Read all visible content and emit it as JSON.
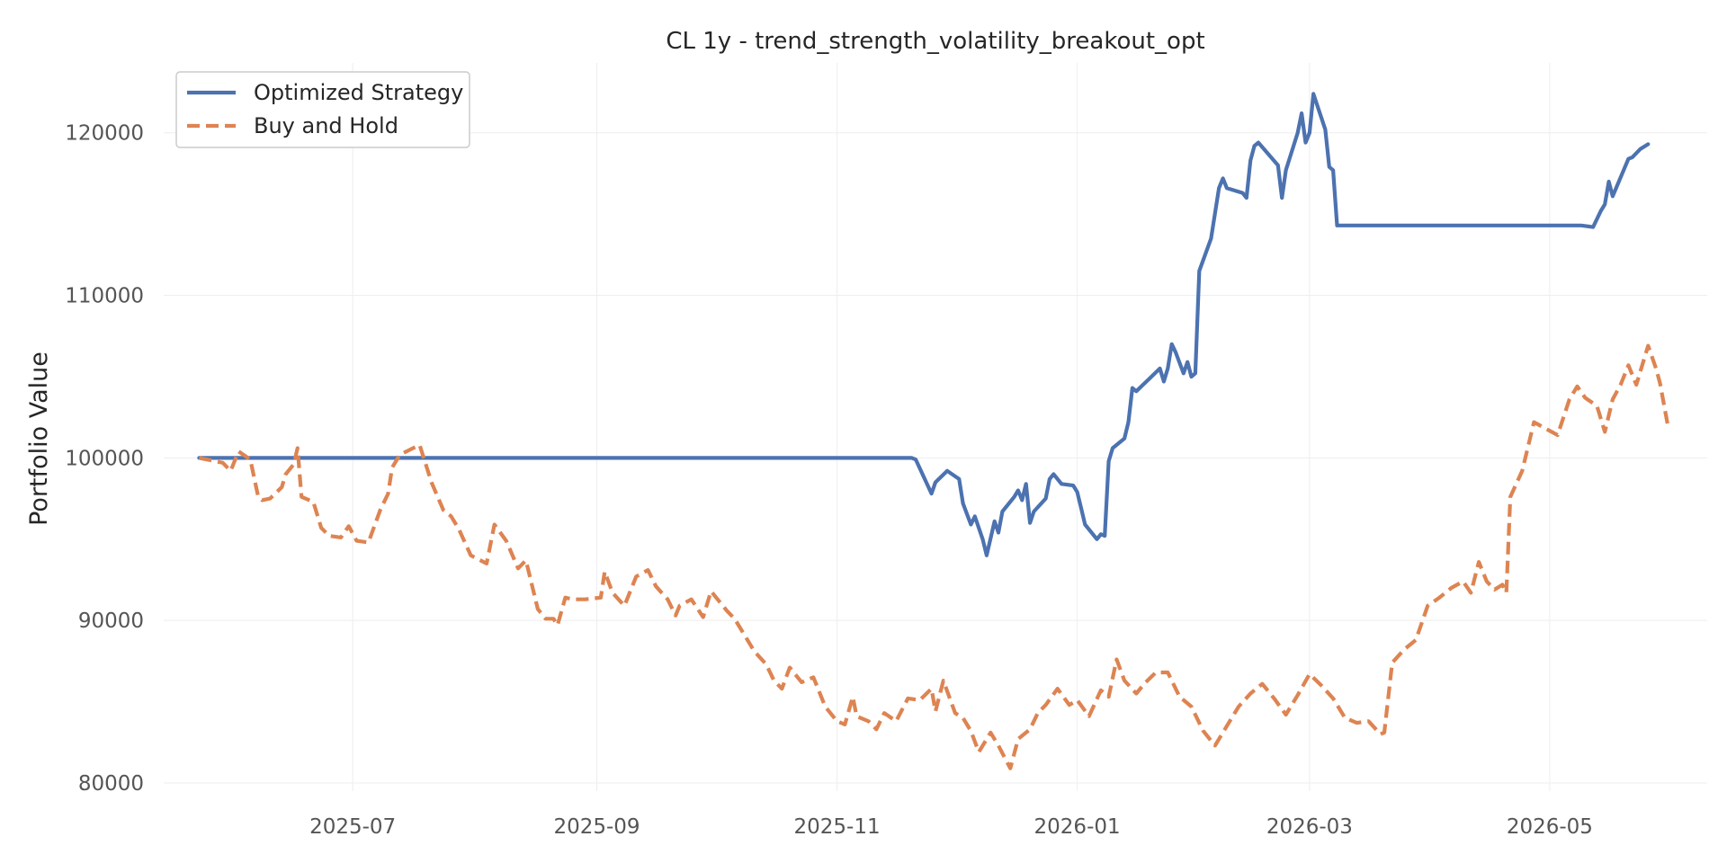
{
  "chart_data": {
    "type": "line",
    "title": "CL 1y - trend_strength_volatility_breakout_opt",
    "xlabel": "",
    "ylabel": "Portfolio Value",
    "grid": true,
    "legend_position": "top-left",
    "xlim": [
      "2025-05-14",
      "2026-06-10"
    ],
    "ylim": [
      79500,
      124300
    ],
    "x_ticks": [
      "2025-07-01",
      "2025-09-01",
      "2025-11-01",
      "2026-01-01",
      "2026-03-01",
      "2026-05-01"
    ],
    "x_tick_labels": [
      "2025-07",
      "2025-09",
      "2025-11",
      "2026-01",
      "2026-03",
      "2026-05"
    ],
    "y_ticks": [
      80000,
      90000,
      100000,
      110000,
      120000
    ],
    "y_tick_labels": [
      "80000",
      "90000",
      "100000",
      "110000",
      "120000"
    ],
    "series": [
      {
        "name": "Optimized Strategy",
        "color": "#4c72b0",
        "style": "solid",
        "points": [
          [
            "2025-05-23",
            100000
          ],
          [
            "2025-11-20",
            100000
          ],
          [
            "2025-11-21",
            99900
          ],
          [
            "2025-11-25",
            97800
          ],
          [
            "2025-11-26",
            98500
          ],
          [
            "2025-11-29",
            99200
          ],
          [
            "2025-12-02",
            98700
          ],
          [
            "2025-12-03",
            97200
          ],
          [
            "2025-12-05",
            95900
          ],
          [
            "2025-12-06",
            96400
          ],
          [
            "2025-12-08",
            95000
          ],
          [
            "2025-12-09",
            94000
          ],
          [
            "2025-12-11",
            96100
          ],
          [
            "2025-12-12",
            95400
          ],
          [
            "2025-12-13",
            96700
          ],
          [
            "2025-12-16",
            97600
          ],
          [
            "2025-12-17",
            98000
          ],
          [
            "2025-12-18",
            97400
          ],
          [
            "2025-12-19",
            98400
          ],
          [
            "2025-12-20",
            96000
          ],
          [
            "2025-12-21",
            96700
          ],
          [
            "2025-12-24",
            97500
          ],
          [
            "2025-12-25",
            98700
          ],
          [
            "2025-12-26",
            99000
          ],
          [
            "2025-12-28",
            98400
          ],
          [
            "2025-12-31",
            98300
          ],
          [
            "2026-01-01",
            97900
          ],
          [
            "2026-01-02",
            96900
          ],
          [
            "2026-01-03",
            95900
          ],
          [
            "2026-01-06",
            95000
          ],
          [
            "2026-01-07",
            95300
          ],
          [
            "2026-01-08",
            95200
          ],
          [
            "2026-01-09",
            99800
          ],
          [
            "2026-01-10",
            100600
          ],
          [
            "2026-01-13",
            101200
          ],
          [
            "2026-01-14",
            102200
          ],
          [
            "2026-01-15",
            104300
          ],
          [
            "2026-01-16",
            104100
          ],
          [
            "2026-01-19",
            104800
          ],
          [
            "2026-01-22",
            105500
          ],
          [
            "2026-01-23",
            104700
          ],
          [
            "2026-01-24",
            105500
          ],
          [
            "2026-01-25",
            107000
          ],
          [
            "2026-01-26",
            106500
          ],
          [
            "2026-01-28",
            105200
          ],
          [
            "2026-01-29",
            105900
          ],
          [
            "2026-01-30",
            105000
          ],
          [
            "2026-01-31",
            105200
          ],
          [
            "2026-02-01",
            111500
          ],
          [
            "2026-02-04",
            113500
          ],
          [
            "2026-02-06",
            116600
          ],
          [
            "2026-02-07",
            117200
          ],
          [
            "2026-02-08",
            116600
          ],
          [
            "2026-02-12",
            116300
          ],
          [
            "2026-02-13",
            116000
          ],
          [
            "2026-02-14",
            118300
          ],
          [
            "2026-02-15",
            119200
          ],
          [
            "2026-02-16",
            119400
          ],
          [
            "2026-02-21",
            118000
          ],
          [
            "2026-02-22",
            116000
          ],
          [
            "2026-02-23",
            117700
          ],
          [
            "2026-02-26",
            120000
          ],
          [
            "2026-02-27",
            121200
          ],
          [
            "2026-02-28",
            119400
          ],
          [
            "2026-03-01",
            120000
          ],
          [
            "2026-03-02",
            122400
          ],
          [
            "2026-03-05",
            120200
          ],
          [
            "2026-03-06",
            117900
          ],
          [
            "2026-03-07",
            117700
          ],
          [
            "2026-03-08",
            114300
          ],
          [
            "2026-05-09",
            114300
          ],
          [
            "2026-05-12",
            114200
          ],
          [
            "2026-05-14",
            115200
          ],
          [
            "2026-05-15",
            115600
          ],
          [
            "2026-05-16",
            117000
          ],
          [
            "2026-05-17",
            116100
          ],
          [
            "2026-05-21",
            118400
          ],
          [
            "2026-05-22",
            118500
          ],
          [
            "2026-05-24",
            119000
          ],
          [
            "2026-05-26",
            119300
          ]
        ]
      },
      {
        "name": "Buy and Hold",
        "color": "#dd8452",
        "style": "dashed",
        "points": [
          [
            "2025-05-23",
            100000
          ],
          [
            "2025-05-29",
            99700
          ],
          [
            "2025-05-31",
            99200
          ],
          [
            "2025-06-02",
            100400
          ],
          [
            "2025-06-05",
            99900
          ],
          [
            "2025-06-07",
            97600
          ],
          [
            "2025-06-08",
            97400
          ],
          [
            "2025-06-10",
            97500
          ],
          [
            "2025-06-13",
            98200
          ],
          [
            "2025-06-14",
            99000
          ],
          [
            "2025-06-16",
            99600
          ],
          [
            "2025-06-17",
            100600
          ],
          [
            "2025-06-18",
            97600
          ],
          [
            "2025-06-21",
            97300
          ],
          [
            "2025-06-23",
            95700
          ],
          [
            "2025-06-25",
            95200
          ],
          [
            "2025-06-28",
            95100
          ],
          [
            "2025-06-30",
            95800
          ],
          [
            "2025-07-02",
            94900
          ],
          [
            "2025-07-05",
            94800
          ],
          [
            "2025-07-08",
            96800
          ],
          [
            "2025-07-10",
            97800
          ],
          [
            "2025-07-11",
            99400
          ],
          [
            "2025-07-13",
            100200
          ],
          [
            "2025-07-18",
            100800
          ],
          [
            "2025-07-21",
            98500
          ],
          [
            "2025-07-24",
            96800
          ],
          [
            "2025-07-26",
            96400
          ],
          [
            "2025-07-28",
            95600
          ],
          [
            "2025-07-31",
            94000
          ],
          [
            "2025-08-04",
            93500
          ],
          [
            "2025-08-06",
            95900
          ],
          [
            "2025-08-09",
            94900
          ],
          [
            "2025-08-12",
            93200
          ],
          [
            "2025-08-14",
            93700
          ],
          [
            "2025-08-17",
            90700
          ],
          [
            "2025-08-19",
            90100
          ],
          [
            "2025-08-21",
            90100
          ],
          [
            "2025-08-22",
            89700
          ],
          [
            "2025-08-24",
            91400
          ],
          [
            "2025-08-26",
            91300
          ],
          [
            "2025-08-29",
            91300
          ],
          [
            "2025-09-02",
            91400
          ],
          [
            "2025-09-03",
            93000
          ],
          [
            "2025-09-05",
            91700
          ],
          [
            "2025-09-08",
            90900
          ],
          [
            "2025-09-11",
            92700
          ],
          [
            "2025-09-14",
            93100
          ],
          [
            "2025-09-16",
            92100
          ],
          [
            "2025-09-19",
            91300
          ],
          [
            "2025-09-21",
            90300
          ],
          [
            "2025-09-22",
            90900
          ],
          [
            "2025-09-25",
            91300
          ],
          [
            "2025-09-28",
            90200
          ],
          [
            "2025-09-30",
            91800
          ],
          [
            "2025-10-04",
            90600
          ],
          [
            "2025-10-06",
            90100
          ],
          [
            "2025-10-08",
            89300
          ],
          [
            "2025-10-11",
            88100
          ],
          [
            "2025-10-14",
            87300
          ],
          [
            "2025-10-16",
            86300
          ],
          [
            "2025-10-18",
            85800
          ],
          [
            "2025-10-20",
            87100
          ],
          [
            "2025-10-23",
            86200
          ],
          [
            "2025-10-26",
            86500
          ],
          [
            "2025-10-29",
            84700
          ],
          [
            "2025-11-01",
            83800
          ],
          [
            "2025-11-03",
            83600
          ],
          [
            "2025-11-05",
            85300
          ],
          [
            "2025-11-06",
            84100
          ],
          [
            "2025-11-09",
            83800
          ],
          [
            "2025-11-11",
            83300
          ],
          [
            "2025-11-13",
            84300
          ],
          [
            "2025-11-16",
            83800
          ],
          [
            "2025-11-19",
            85200
          ],
          [
            "2025-11-22",
            85100
          ],
          [
            "2025-11-25",
            85800
          ],
          [
            "2025-11-26",
            84400
          ],
          [
            "2025-11-28",
            86300
          ],
          [
            "2025-12-01",
            84300
          ],
          [
            "2025-12-03",
            84000
          ],
          [
            "2025-12-05",
            83200
          ],
          [
            "2025-12-07",
            81900
          ],
          [
            "2025-12-10",
            83100
          ],
          [
            "2025-12-12",
            82300
          ],
          [
            "2025-12-15",
            80900
          ],
          [
            "2025-12-17",
            82700
          ],
          [
            "2025-12-20",
            83300
          ],
          [
            "2025-12-22",
            84300
          ],
          [
            "2025-12-24",
            84800
          ],
          [
            "2025-12-27",
            85800
          ],
          [
            "2025-12-30",
            84800
          ],
          [
            "2026-01-01",
            85100
          ],
          [
            "2026-01-04",
            84100
          ],
          [
            "2026-01-07",
            85700
          ],
          [
            "2026-01-09",
            85300
          ],
          [
            "2026-01-11",
            87600
          ],
          [
            "2026-01-13",
            86300
          ],
          [
            "2026-01-16",
            85500
          ],
          [
            "2026-01-18",
            86100
          ],
          [
            "2026-01-21",
            86800
          ],
          [
            "2026-01-24",
            86800
          ],
          [
            "2026-01-27",
            85300
          ],
          [
            "2026-01-30",
            84700
          ],
          [
            "2026-02-02",
            83200
          ],
          [
            "2026-02-05",
            82300
          ],
          [
            "2026-02-08",
            83500
          ],
          [
            "2026-02-11",
            84700
          ],
          [
            "2026-02-14",
            85500
          ],
          [
            "2026-02-17",
            86100
          ],
          [
            "2026-02-20",
            85200
          ],
          [
            "2026-02-23",
            84200
          ],
          [
            "2026-02-26",
            85400
          ],
          [
            "2026-03-01",
            86700
          ],
          [
            "2026-03-04",
            86000
          ],
          [
            "2026-03-07",
            85200
          ],
          [
            "2026-03-10",
            84000
          ],
          [
            "2026-03-13",
            83700
          ],
          [
            "2026-03-16",
            83800
          ],
          [
            "2026-03-19",
            83000
          ],
          [
            "2026-03-20",
            83100
          ],
          [
            "2026-03-22",
            87400
          ],
          [
            "2026-03-25",
            88200
          ],
          [
            "2026-03-28",
            88800
          ],
          [
            "2026-03-31",
            90900
          ],
          [
            "2026-04-03",
            91400
          ],
          [
            "2026-04-06",
            92000
          ],
          [
            "2026-04-09",
            92400
          ],
          [
            "2026-04-11",
            91700
          ],
          [
            "2026-04-13",
            93600
          ],
          [
            "2026-04-15",
            92400
          ],
          [
            "2026-04-17",
            91900
          ],
          [
            "2026-04-19",
            92200
          ],
          [
            "2026-04-20",
            91700
          ],
          [
            "2026-04-21",
            97600
          ],
          [
            "2026-04-24",
            99200
          ],
          [
            "2026-04-27",
            102200
          ],
          [
            "2026-04-30",
            101800
          ],
          [
            "2026-05-03",
            101400
          ],
          [
            "2026-05-06",
            103600
          ],
          [
            "2026-05-08",
            104400
          ],
          [
            "2026-05-10",
            103700
          ],
          [
            "2026-05-13",
            103200
          ],
          [
            "2026-05-15",
            101600
          ],
          [
            "2026-05-17",
            103600
          ],
          [
            "2026-05-19",
            104500
          ],
          [
            "2026-05-21",
            105700
          ],
          [
            "2026-05-23",
            104500
          ],
          [
            "2026-05-26",
            106900
          ],
          [
            "2026-05-28",
            105500
          ],
          [
            "2026-05-29",
            104600
          ],
          [
            "2026-05-31",
            102000
          ]
        ]
      }
    ]
  }
}
